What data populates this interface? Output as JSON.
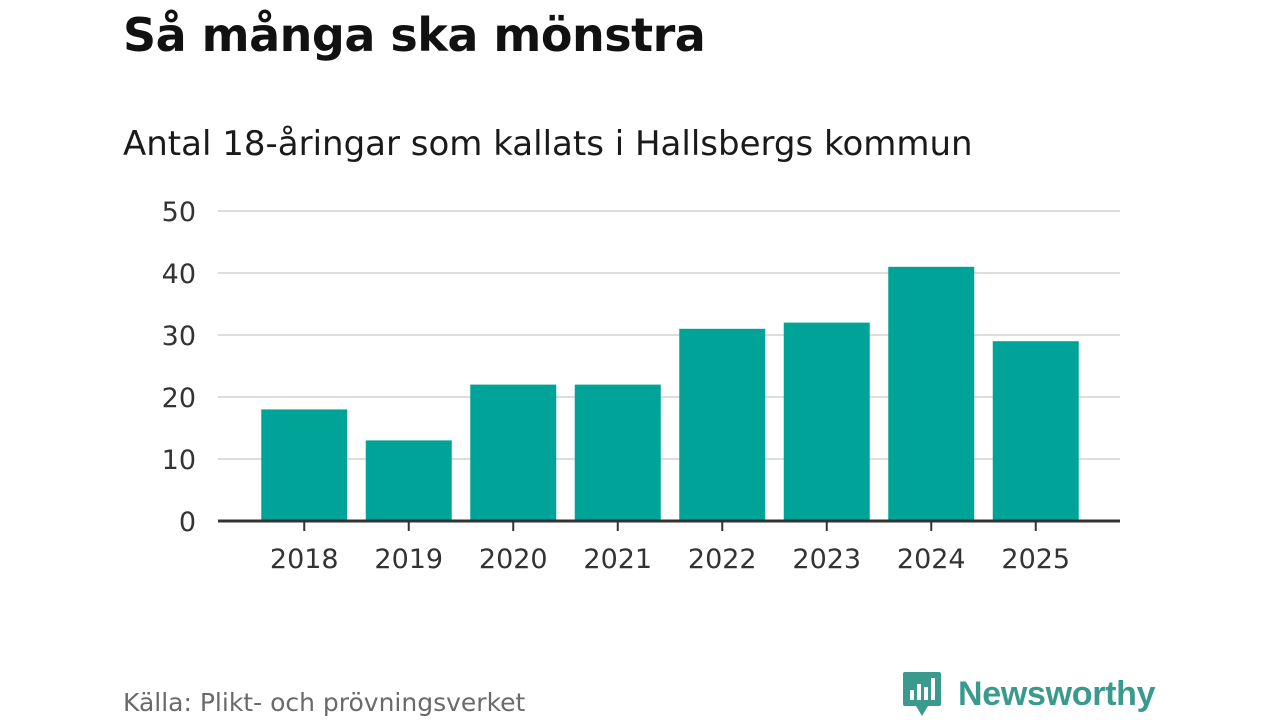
{
  "title": "Så många ska mönstra",
  "subtitle": "Antal 18-åringar som kallats i Hallsbergs kommun",
  "source": "Källa: Plikt- och prövningsverket",
  "brand": {
    "name": "Newsworthy",
    "icon": "bar-chart-speech-bubble-icon",
    "color": "#3a9a8e"
  },
  "colors": {
    "bar": "#00a398",
    "grid": "#dddddd",
    "axis": "#333333"
  },
  "chart_data": {
    "type": "bar",
    "title": "Så många ska mönstra",
    "subtitle": "Antal 18-åringar som kallats i Hallsbergs kommun",
    "xlabel": "",
    "ylabel": "",
    "categories": [
      "2018",
      "2019",
      "2020",
      "2021",
      "2022",
      "2023",
      "2024",
      "2025"
    ],
    "values": [
      18,
      13,
      22,
      22,
      31,
      32,
      41,
      29
    ],
    "ylim": [
      0,
      50
    ],
    "yticks": [
      0,
      10,
      20,
      30,
      40,
      50
    ],
    "grid": true,
    "legend": "none"
  }
}
